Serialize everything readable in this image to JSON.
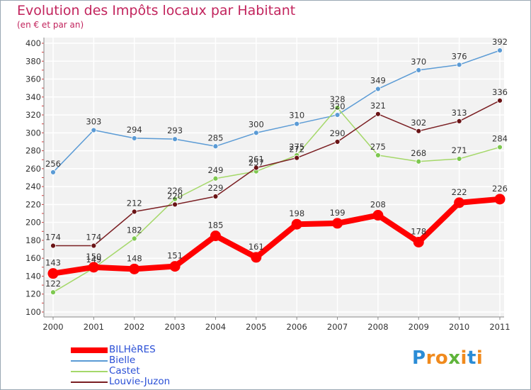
{
  "title": "Evolution des Impôts locaux par Habitant",
  "subtitle": "(en € et par an)",
  "logo": {
    "letters": [
      "P",
      "r",
      "o",
      "x",
      "i",
      "t",
      "i"
    ],
    "colors": [
      "#2a8cd6",
      "#f08a1d",
      "#f08a1d",
      "#5fb43a",
      "#f08a1d",
      "#2a8cd6",
      "#f08a1d"
    ]
  },
  "chart_data": {
    "type": "line",
    "title": "Evolution des Impôts locaux par Habitant",
    "subtitle": "(en € et par an)",
    "xlabel": "",
    "ylabel": "",
    "categories": [
      "2000",
      "2001",
      "2002",
      "2003",
      "2004",
      "2005",
      "2006",
      "2007",
      "2008",
      "2009",
      "2010",
      "2011"
    ],
    "ylim": [
      100,
      400
    ],
    "yticks": [
      100,
      120,
      140,
      160,
      180,
      200,
      220,
      240,
      260,
      280,
      300,
      320,
      340,
      360,
      380,
      400
    ],
    "legend_position": "bottom-left",
    "series": [
      {
        "name": "Bielle",
        "color": "#5b9bd5",
        "marker": "#5b9bd5",
        "width": 1.5,
        "values": [
          256,
          303,
          294,
          293,
          285,
          300,
          310,
          320,
          349,
          370,
          376,
          392
        ]
      },
      {
        "name": "Castet",
        "color": "#a5d86a",
        "marker": "#7ec850",
        "width": 1.5,
        "values": [
          122,
          149,
          182,
          226,
          249,
          257,
          275,
          328,
          275,
          268,
          271,
          284
        ]
      },
      {
        "name": "Louvie-Juzon",
        "color": "#7a1e22",
        "marker": "#6a1416",
        "width": 1.5,
        "values": [
          174,
          174,
          212,
          220,
          229,
          261,
          272,
          290,
          321,
          302,
          313,
          336
        ]
      },
      {
        "name": "BILHèRES",
        "color": "#ff0000",
        "marker": "#ff0000",
        "width": 8,
        "values": [
          143,
          150,
          148,
          151,
          185,
          161,
          198,
          199,
          208,
          178,
          222,
          226
        ]
      }
    ],
    "legend_order": [
      "BILHèRES",
      "Bielle",
      "Castet",
      "Louvie-Juzon"
    ]
  }
}
